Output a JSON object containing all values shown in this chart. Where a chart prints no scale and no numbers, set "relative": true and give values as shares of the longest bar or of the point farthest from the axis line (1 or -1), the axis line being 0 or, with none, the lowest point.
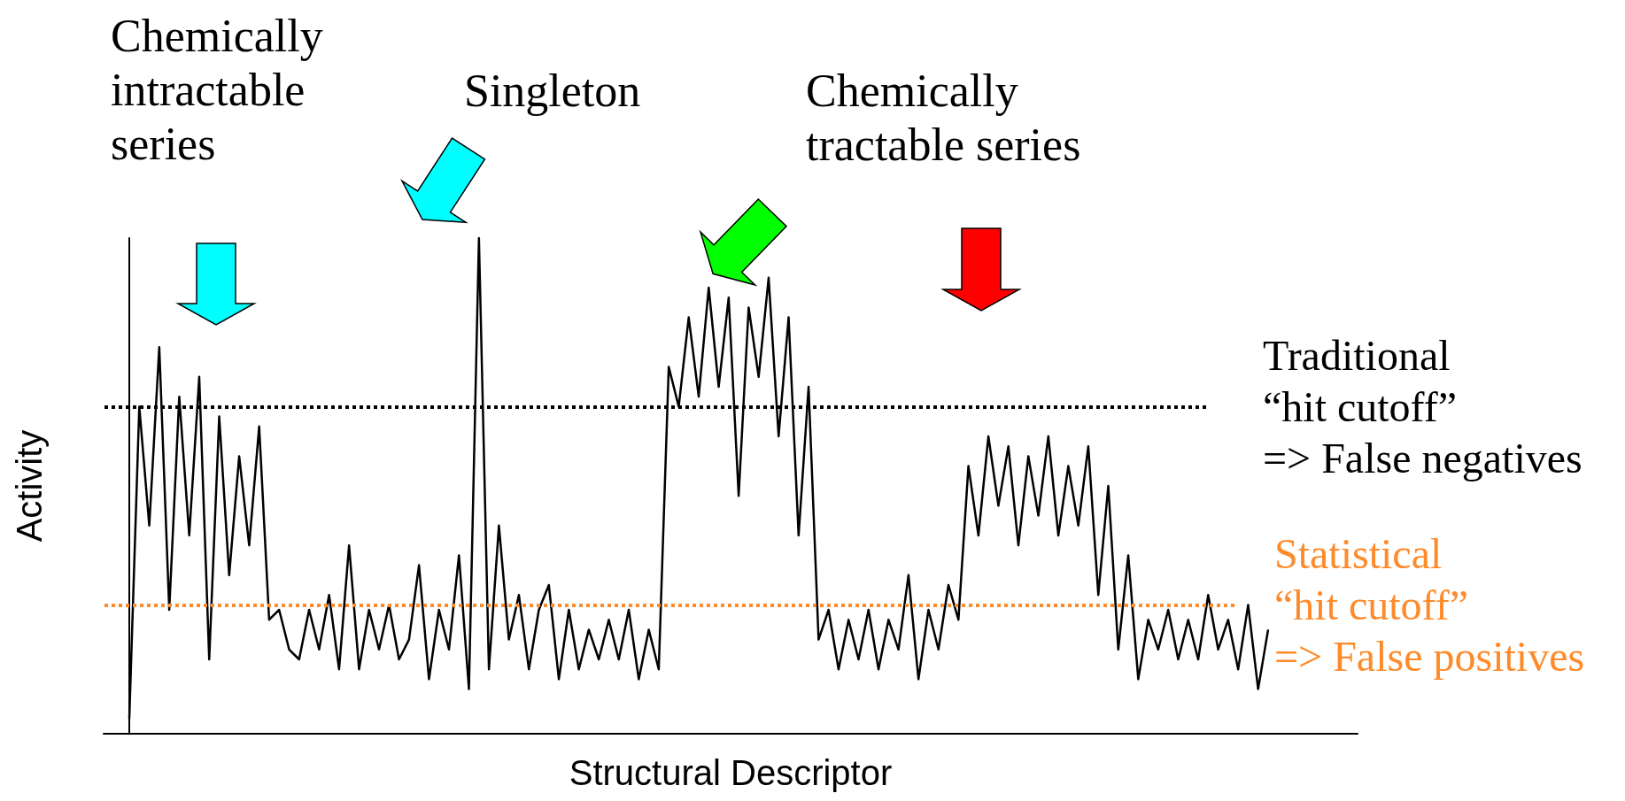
{
  "chart_data": {
    "type": "line",
    "relative": true,
    "xlabel": "Structural Descriptor",
    "ylabel": "Activity",
    "categories": [
      null,
      null,
      null,
      null,
      null,
      null,
      null,
      null,
      null,
      null,
      null,
      null,
      null,
      null,
      null,
      null,
      null,
      null,
      null,
      null,
      null,
      null,
      null,
      null,
      null,
      null,
      null,
      null,
      null,
      null,
      null,
      null,
      null,
      null,
      null,
      null,
      null,
      null,
      null,
      null,
      null,
      null,
      null,
      null,
      null,
      null,
      null,
      null,
      null,
      null,
      null,
      null,
      null,
      null,
      null,
      null,
      null,
      null,
      null,
      null,
      null,
      null,
      null,
      null,
      null,
      null,
      null,
      null,
      null,
      null,
      null,
      null,
      null,
      null,
      null,
      null,
      null,
      null,
      null,
      null,
      null,
      null,
      null,
      null,
      null,
      null,
      null,
      null,
      null,
      null,
      null,
      null,
      null,
      null,
      null,
      null,
      null,
      null,
      null,
      null,
      null,
      null,
      null,
      null,
      null,
      null,
      null,
      null,
      null,
      null,
      null,
      null,
      null,
      null,
      null
    ],
    "series": [
      {
        "color": "#000000",
        "values": [
          0.03,
          0.66,
          0.42,
          0.78,
          0.25,
          0.68,
          0.4,
          0.72,
          0.15,
          0.64,
          0.32,
          0.56,
          0.38,
          0.62,
          0.23,
          0.25,
          0.17,
          0.15,
          0.25,
          0.17,
          0.28,
          0.13,
          0.38,
          0.13,
          0.25,
          0.17,
          0.26,
          0.15,
          0.19,
          0.34,
          0.11,
          0.25,
          0.17,
          0.36,
          0.09,
          1.0,
          0.13,
          0.42,
          0.19,
          0.28,
          0.13,
          0.25,
          0.3,
          0.11,
          0.25,
          0.13,
          0.21,
          0.15,
          0.23,
          0.15,
          0.25,
          0.11,
          0.21,
          0.13,
          0.74,
          0.66,
          0.84,
          0.68,
          0.9,
          0.7,
          0.88,
          0.48,
          0.86,
          0.72,
          0.92,
          0.6,
          0.84,
          0.4,
          0.7,
          0.19,
          0.25,
          0.13,
          0.23,
          0.15,
          0.25,
          0.13,
          0.23,
          0.17,
          0.32,
          0.11,
          0.25,
          0.17,
          0.3,
          0.23,
          0.54,
          0.4,
          0.6,
          0.46,
          0.58,
          0.38,
          0.56,
          0.44,
          0.6,
          0.4,
          0.54,
          0.42,
          0.58,
          0.28,
          0.5,
          0.17,
          0.36,
          0.11,
          0.23,
          0.17,
          0.25,
          0.15,
          0.23,
          0.15,
          0.28,
          0.17,
          0.23,
          0.13,
          0.26,
          0.09,
          0.21
        ]
      }
    ],
    "marker": "none",
    "line_style": "solid",
    "grid": false,
    "ref_lines": [
      {
        "axis": "y",
        "value": 0.66,
        "label": "Traditional\n“hit cutoff”\n=> False negatives",
        "color": "#000000",
        "line_style": "dotted"
      },
      {
        "axis": "y",
        "value": 0.26,
        "label": "Statistical\n“hit cutoff”\n=> False positives",
        "color": "#ff8a2a",
        "line_style": "dotted"
      }
    ],
    "annotations": [
      "Chemically\nintractable\nseries",
      "Singleton",
      "Chemically\ntractable series"
    ]
  }
}
